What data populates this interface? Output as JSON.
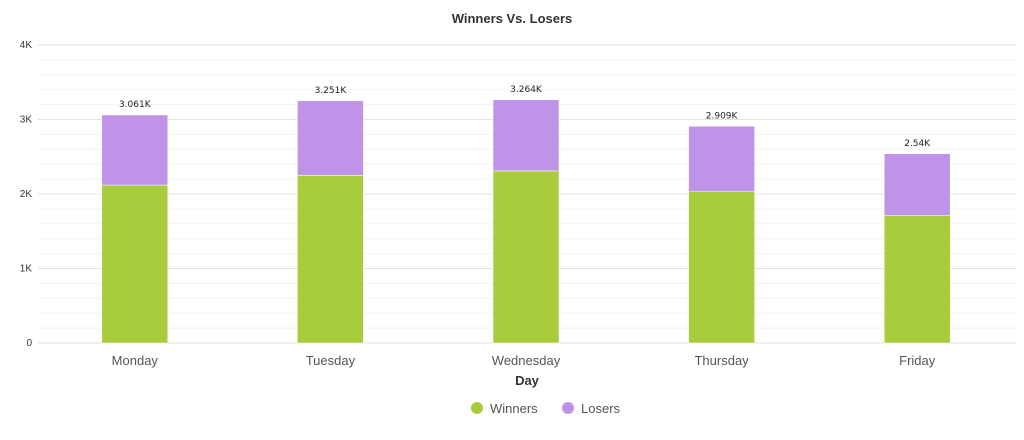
{
  "chart_data": {
    "type": "bar",
    "stacked": true,
    "title": "Winners Vs. Losers",
    "xlabel": "Day",
    "ylabel": "",
    "categories": [
      "Monday",
      "Tuesday",
      "Wednesday",
      "Thursday",
      "Friday"
    ],
    "series": [
      {
        "name": "Winners",
        "color": "#a8cc3c",
        "values": [
          2120,
          2250,
          2310,
          2030,
          1710
        ]
      },
      {
        "name": "Losers",
        "color": "#bf94e8",
        "values": [
          941,
          1001,
          954,
          879,
          830
        ]
      }
    ],
    "totals_labels": [
      "3.061K",
      "3.251K",
      "3.264K",
      "2.909K",
      "2.54K"
    ],
    "ylim": [
      0,
      4000
    ],
    "yticks": [
      0,
      1000,
      2000,
      3000,
      4000
    ],
    "ytick_labels": [
      "0",
      "1K",
      "2K",
      "3K",
      "4K"
    ],
    "grid": true,
    "legend_position": "bottom-center"
  }
}
